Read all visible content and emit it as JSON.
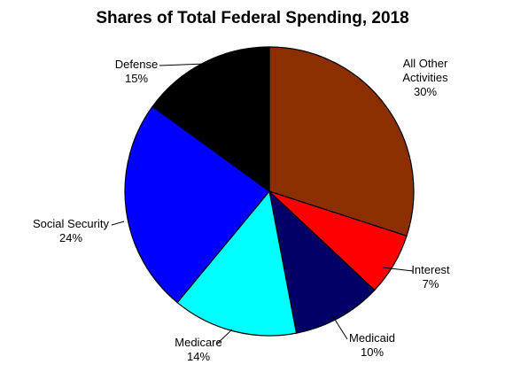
{
  "chart_data": {
    "type": "pie",
    "title": "Shares of Total Federal Spending, 2018",
    "slices": [
      {
        "label": "All Other Activities",
        "value": 30,
        "value_label": "30%",
        "color": "#8B2F00"
      },
      {
        "label": "Interest",
        "value": 7,
        "value_label": "7%",
        "color": "#FF0000"
      },
      {
        "label": "Medicaid",
        "value": 10,
        "value_label": "10%",
        "color": "#000066"
      },
      {
        "label": "Medicare",
        "value": 14,
        "value_label": "14%",
        "color": "#00FFFF"
      },
      {
        "label": "Social Security",
        "value": 24,
        "value_label": "24%",
        "color": "#0000FF"
      },
      {
        "label": "Defense",
        "value": 15,
        "value_label": "15%",
        "color": "#000000"
      }
    ],
    "start_angle": "12 o'clock",
    "direction": "clockwise",
    "legend": "none",
    "label_style": "outside with leader lines"
  }
}
